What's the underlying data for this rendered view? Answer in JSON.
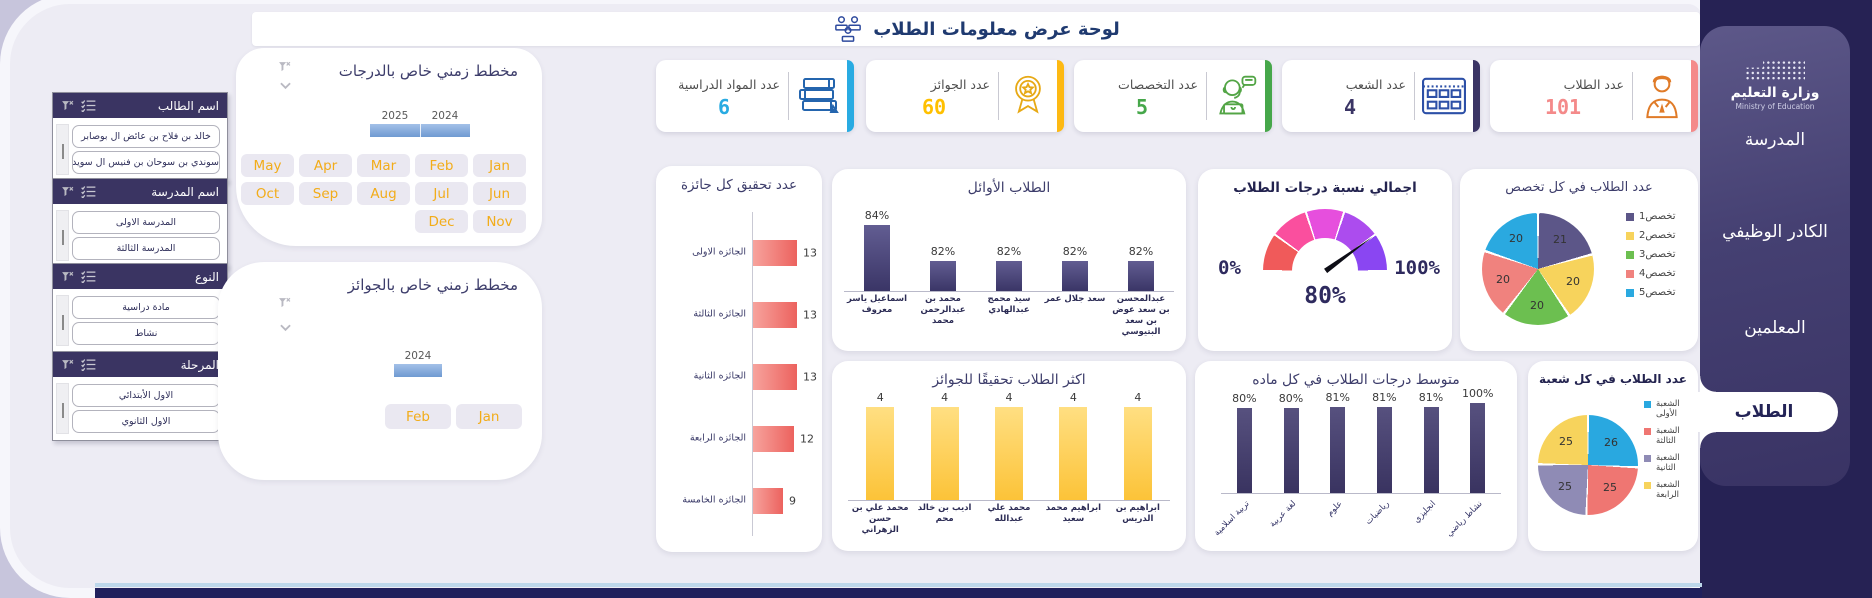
{
  "app": {
    "title": "لوحة عرض معلومات الطلاب"
  },
  "sidebar": {
    "logo_title": "وزارة التعليم",
    "logo_subtitle": "Ministry of Education",
    "items": [
      {
        "label": "المدرسة",
        "active": false
      },
      {
        "label": "الكادر الوظيفي",
        "active": false
      },
      {
        "label": "المعلمين",
        "active": false
      },
      {
        "label": "الطلاب",
        "active": true
      }
    ]
  },
  "slicers": [
    {
      "title": "اسم الطالب",
      "items": [
        "خالد بن فلاح بن عائض ال بوصابر",
        "سوندي بن سوحان بن فنيس ال سويدان"
      ]
    },
    {
      "title": "اسم المدرسة",
      "items": [
        "المدرسة الاولى",
        "المدرسة الثالثة"
      ]
    },
    {
      "title": "النوع",
      "items": [
        "مادة دراسية",
        "نشاط"
      ]
    },
    {
      "title": "المرحلة",
      "items": [
        "الاول الأبتدائي",
        "الاول الثانوي"
      ]
    }
  ],
  "timelines": [
    {
      "title": "مخطط زمني خاص بالدرجات",
      "years": [
        "2025",
        "2024"
      ],
      "columns": 5,
      "months": [
        "Jan",
        "Feb",
        "Mar",
        "Apr",
        "May",
        "Jun",
        "Jul",
        "Aug",
        "Sep",
        "Oct",
        "Nov",
        "Dec"
      ]
    },
    {
      "title": "مخطط زمني خاص بالجوائز",
      "years": [
        "2024"
      ],
      "columns": 2,
      "months": [
        "Jan",
        "Feb"
      ]
    }
  ],
  "kpis": [
    {
      "label": "عدد المواد الدراسية",
      "value": "6",
      "accent": "#29abe2",
      "value_color": "#29abe2",
      "icon": "books-icon"
    },
    {
      "label": "عدد الجوائز",
      "value": "60",
      "accent": "#fdb913",
      "value_color": "#ffc000",
      "icon": "award-medal-icon"
    },
    {
      "label": "عدد التخصصات",
      "value": "5",
      "accent": "#46a74a",
      "value_color": "#46a74a",
      "icon": "specialist-icon"
    },
    {
      "label": "عدد الشعب",
      "value": "4",
      "accent": "#3b3565",
      "value_color": "#3b3565",
      "icon": "sections-grid-icon"
    },
    {
      "label": "عدد الطلاب",
      "value": "101",
      "accent": "#f48a8a",
      "value_color": "#f48a8a",
      "icon": "student-icon"
    }
  ],
  "chart_data": [
    {
      "id": "awards_count",
      "type": "bar",
      "orientation": "horizontal",
      "title": "عدد تحقيق كل جائزة",
      "categories": [
        "الجائزه الاولى",
        "الجائزه الثالثة",
        "الجائزه الثانية",
        "الجائزه الرابعة",
        "الجائزه الخامسة"
      ],
      "values": [
        13,
        13,
        13,
        12,
        9
      ],
      "bar_color": "#ec625e"
    },
    {
      "id": "top_students",
      "type": "bar",
      "orientation": "vertical",
      "title": "الطلاب الأوائل",
      "categories": [
        "اسماعيل ياسر معروف",
        "محمد بن عبدالرحمن محمد",
        "سيد محمج عبدالهادي",
        "سعد جلال عمر",
        "عبدالمحسن بن سعد عوض بن سعد البتيوسي"
      ],
      "values": [
        84,
        82,
        82,
        82,
        82
      ],
      "value_suffix": "%",
      "axis_min": 80,
      "bar_color": "#3a3566"
    },
    {
      "id": "grades_gauge",
      "type": "gauge",
      "title": "اجمالي نسبة درجات الطلاب",
      "value": 80,
      "min": 0,
      "max": 100,
      "min_label": "0%",
      "max_label": "100%",
      "value_label": "80%",
      "segment_colors": [
        "#f05a5a",
        "#fa4f9e",
        "#e64fdd",
        "#ac4cee",
        "#8a46f2"
      ]
    },
    {
      "id": "students_per_major",
      "type": "pie",
      "title": "عدد الطلاب في كل تخصص",
      "labels": [
        "تخصص1",
        "تخصص2",
        "تخصص3",
        "تخصص4",
        "تخصص5"
      ],
      "values": [
        21,
        20,
        20,
        20,
        20
      ],
      "colors": [
        "#5c5688",
        "#f7d35c",
        "#6cbf50",
        "#f0827e",
        "#2aa9e0"
      ],
      "legend_position": "right"
    },
    {
      "id": "most_awarded",
      "type": "bar",
      "orientation": "vertical",
      "title": "اكثر الطلاب تحقيقًا للجوائز",
      "categories": [
        "محمد علي بن حسن الزهراني",
        "اديب بن خالد محم",
        "محمد علي عبدالله",
        "ابراهيم محمد سعيد",
        "ابراهيم بن الدريس"
      ],
      "values": [
        4,
        4,
        4,
        4,
        4
      ],
      "bar_color": "#fcc338"
    },
    {
      "id": "avg_grade_per_subject",
      "type": "bar",
      "orientation": "vertical",
      "title": "متوسط درجات الطلاب في كل ماده",
      "categories": [
        "تربية اسلامية",
        "لغة عربية",
        "علوم",
        "رياضيات",
        "انجليزي",
        "نشاط رياضي"
      ],
      "values": [
        80,
        80,
        81,
        81,
        81,
        100
      ],
      "value_suffix": "%",
      "bar_color": "#3a3464"
    },
    {
      "id": "students_per_section",
      "type": "pie",
      "title": "عدد الطلاب في كل شعبة",
      "labels": [
        "الشعبة الأولى",
        "الشعبة الثالثة",
        "الشعبة الثانية",
        "الشعبة الرابعة"
      ],
      "values": [
        26,
        25,
        25,
        25
      ],
      "colors": [
        "#29a8e0",
        "#ef7672",
        "#8f8bb5",
        "#f7d35c"
      ],
      "legend_position": "right"
    }
  ]
}
